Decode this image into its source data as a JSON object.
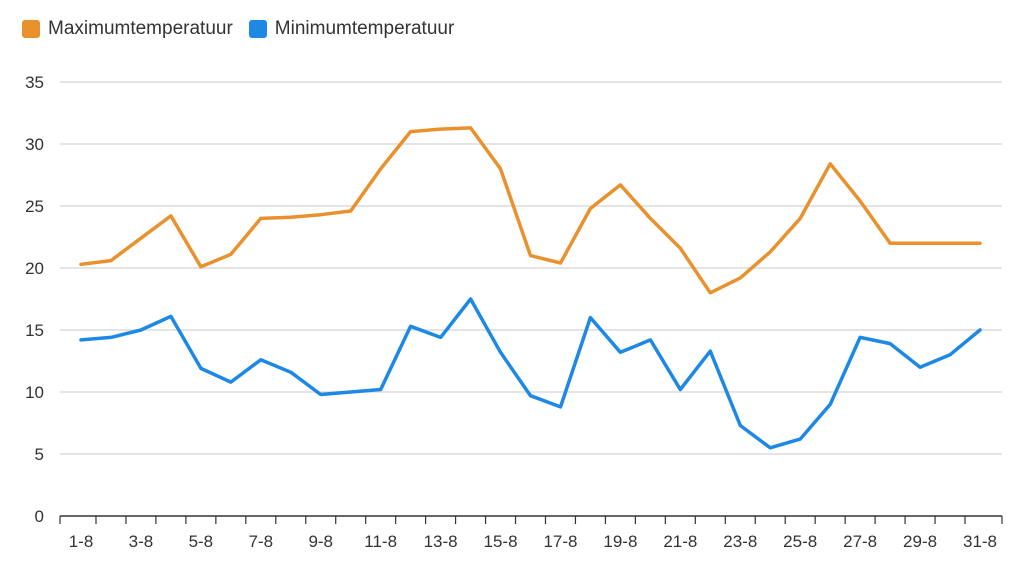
{
  "chart_data": {
    "type": "line",
    "title": "",
    "xlabel": "",
    "ylabel": "",
    "ylim": [
      0,
      35
    ],
    "yticks": [
      0,
      5,
      10,
      15,
      20,
      25,
      30,
      35
    ],
    "grid": true,
    "legend_position": "top-left",
    "x": [
      "1-8",
      "2-8",
      "3-8",
      "4-8",
      "5-8",
      "6-8",
      "7-8",
      "8-8",
      "9-8",
      "10-8",
      "11-8",
      "12-8",
      "13-8",
      "14-8",
      "15-8",
      "16-8",
      "17-8",
      "18-8",
      "19-8",
      "20-8",
      "21-8",
      "22-8",
      "23-8",
      "24-8",
      "25-8",
      "26-8",
      "27-8",
      "28-8",
      "29-8",
      "30-8",
      "31-8"
    ],
    "xtick_labels": [
      "1-8",
      "3-8",
      "5-8",
      "7-8",
      "9-8",
      "11-8",
      "13-8",
      "15-8",
      "17-8",
      "19-8",
      "21-8",
      "23-8",
      "25-8",
      "27-8",
      "29-8",
      "31-8"
    ],
    "series": [
      {
        "name": "Maximumtemperatuur",
        "color": "#E8912D",
        "values": [
          20.3,
          20.6,
          22.4,
          24.2,
          20.1,
          21.1,
          24.0,
          24.1,
          24.3,
          24.6,
          28.0,
          31.0,
          31.2,
          31.3,
          28.0,
          21.0,
          20.4,
          24.8,
          26.7,
          24.0,
          21.6,
          18.0,
          19.2,
          21.3,
          24.0,
          28.4,
          25.4,
          22.0,
          22.0,
          22.0,
          22.0
        ]
      },
      {
        "name": "Minimumtemperatuur",
        "color": "#1E88E5",
        "values": [
          14.2,
          14.4,
          15.0,
          16.1,
          11.9,
          10.8,
          12.6,
          11.6,
          9.8,
          10.0,
          10.2,
          15.3,
          14.4,
          17.5,
          13.2,
          9.7,
          8.8,
          16.0,
          13.2,
          14.2,
          10.2,
          13.3,
          7.3,
          5.5,
          6.2,
          9.0,
          14.4,
          13.9,
          12.0,
          13.0,
          15.0
        ]
      }
    ]
  }
}
